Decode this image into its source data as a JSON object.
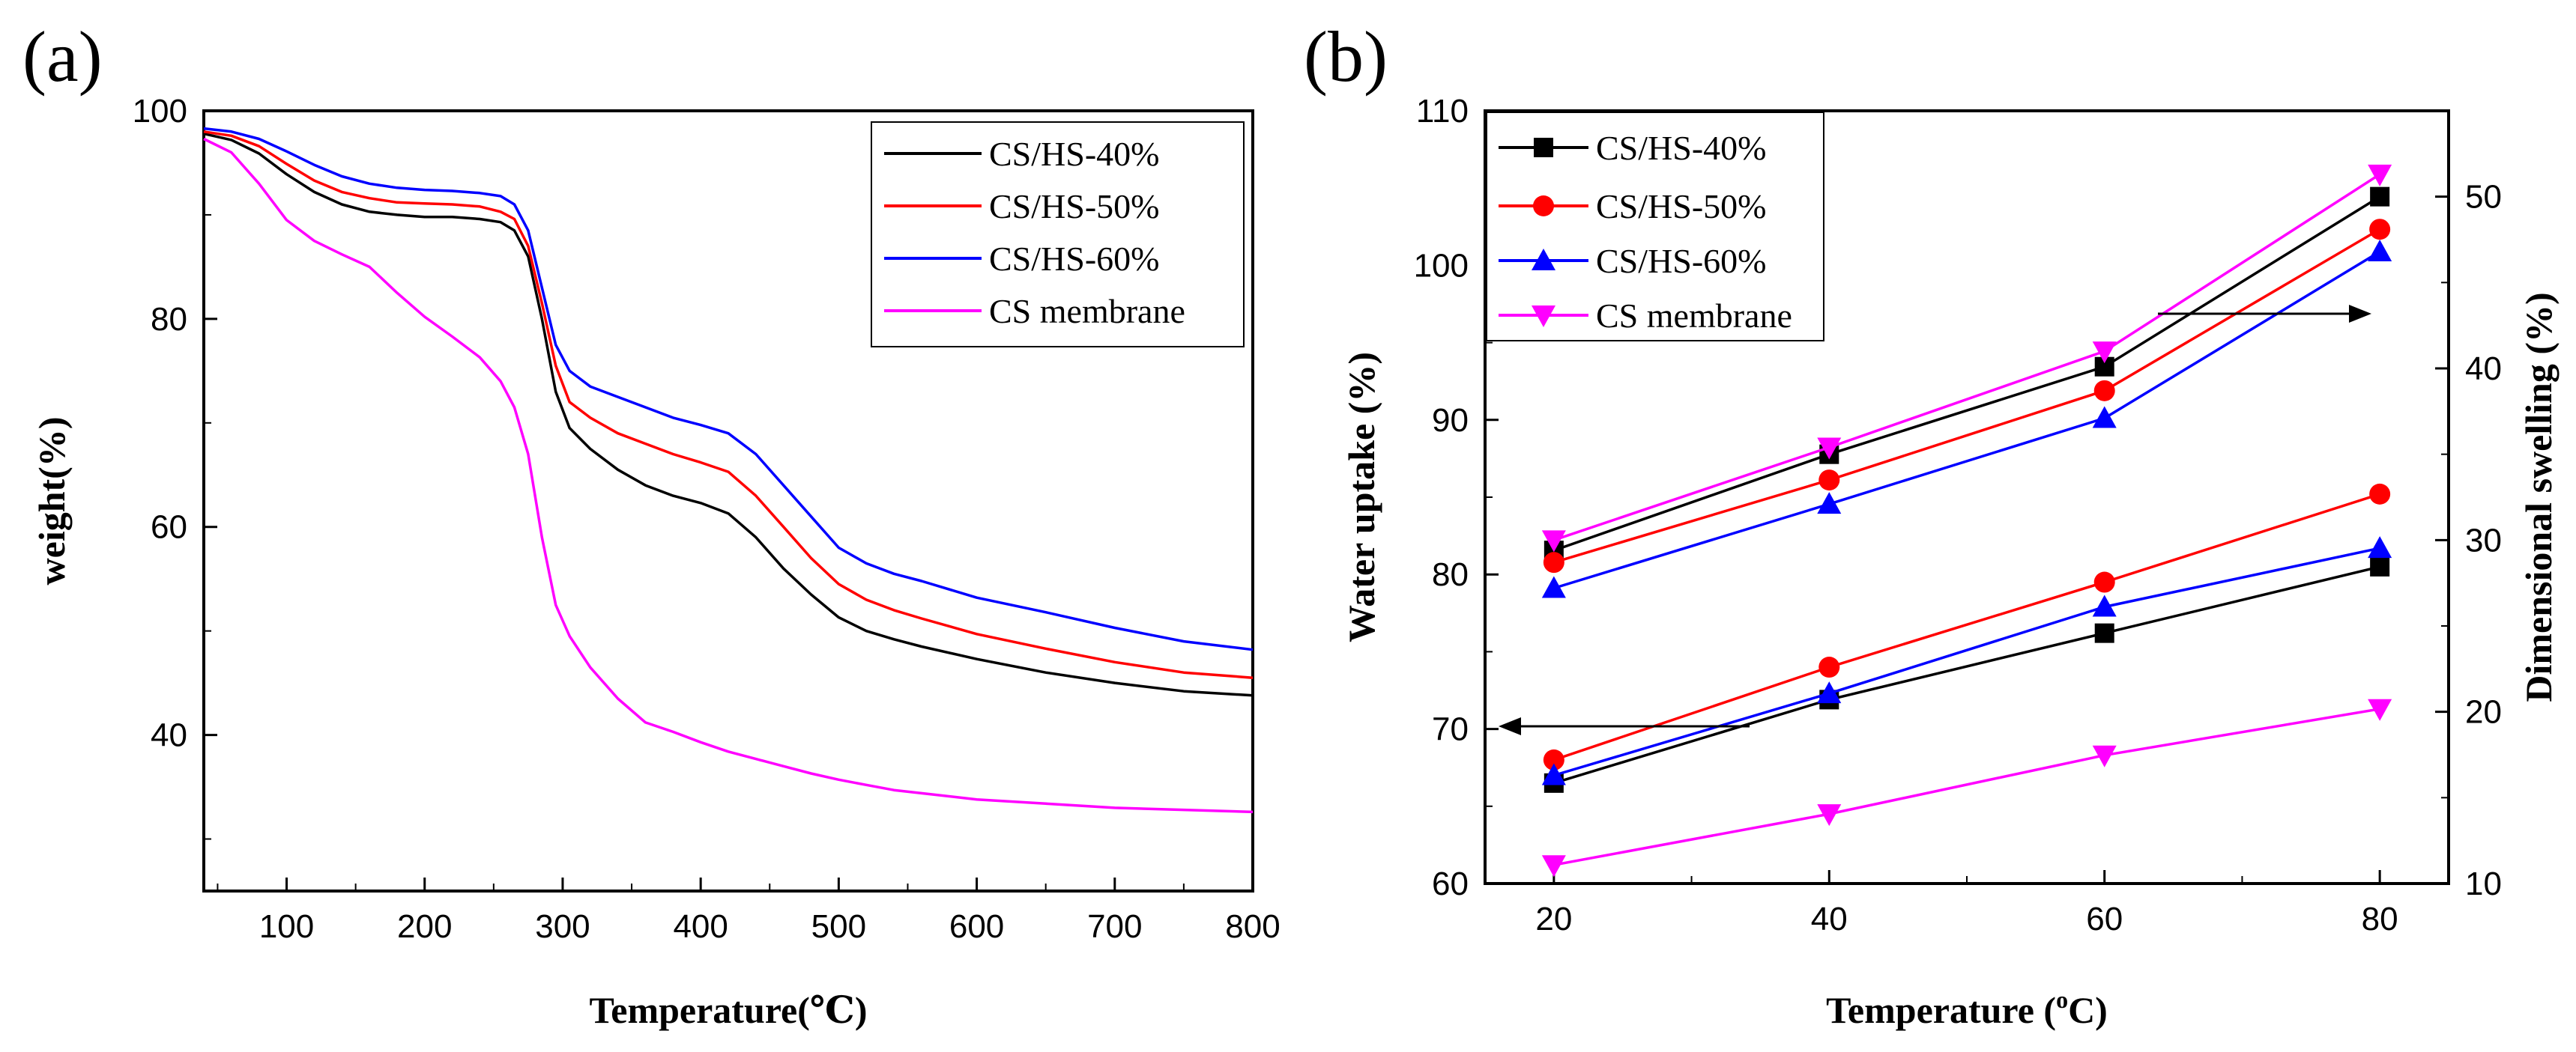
{
  "colors": {
    "CS/HS-40%": "#000000",
    "CS/HS-50%": "#ff0000",
    "CS/HS-60%": "#0000ff",
    "CS membrane": "#ff00ff"
  },
  "chart_data": [
    {
      "panel": "(a)",
      "type": "line",
      "title": "",
      "xlabel": "Temperature(℃)",
      "ylabel": "weight(%)",
      "xlim": [
        40,
        800
      ],
      "ylim": [
        25,
        100
      ],
      "xticks": [
        100,
        200,
        300,
        400,
        500,
        600,
        700,
        800
      ],
      "yticks": [
        40,
        60,
        80,
        100
      ],
      "legend_position": "top-right",
      "series": [
        {
          "name": "CS/HS-40%",
          "x": [
            40,
            60,
            80,
            100,
            120,
            140,
            160,
            180,
            200,
            220,
            240,
            255,
            265,
            275,
            285,
            295,
            305,
            320,
            340,
            360,
            380,
            400,
            420,
            440,
            460,
            480,
            500,
            520,
            540,
            560,
            600,
            650,
            700,
            750,
            800
          ],
          "y": [
            97.8,
            97.2,
            95.9,
            93.9,
            92.2,
            91.0,
            90.3,
            90.0,
            89.8,
            89.8,
            89.6,
            89.3,
            88.5,
            86,
            80,
            73,
            69.5,
            67.5,
            65.5,
            64.0,
            63.0,
            62.3,
            61.3,
            59,
            56,
            53.5,
            51.3,
            50.0,
            49.2,
            48.5,
            47.3,
            46.0,
            45.0,
            44.2,
            43.8
          ]
        },
        {
          "name": "CS/HS-50%",
          "x": [
            40,
            60,
            80,
            100,
            120,
            140,
            160,
            180,
            200,
            220,
            240,
            255,
            265,
            275,
            285,
            295,
            305,
            320,
            340,
            360,
            380,
            400,
            420,
            440,
            460,
            480,
            500,
            520,
            540,
            560,
            600,
            650,
            700,
            750,
            800
          ],
          "y": [
            98.0,
            97.6,
            96.6,
            94.9,
            93.3,
            92.2,
            91.6,
            91.2,
            91.1,
            91.0,
            90.8,
            90.3,
            89.6,
            87,
            81.5,
            75.5,
            72,
            70.5,
            69,
            68,
            67,
            66.2,
            65.3,
            63,
            60,
            57,
            54.5,
            53,
            52,
            51.2,
            49.7,
            48.3,
            47,
            46,
            45.5
          ]
        },
        {
          "name": "CS/HS-60%",
          "x": [
            40,
            60,
            80,
            100,
            120,
            140,
            160,
            180,
            200,
            220,
            240,
            255,
            265,
            275,
            285,
            295,
            305,
            320,
            340,
            360,
            380,
            400,
            420,
            440,
            460,
            480,
            500,
            520,
            540,
            560,
            600,
            650,
            700,
            750,
            800
          ],
          "y": [
            98.3,
            98.0,
            97.3,
            96.1,
            94.8,
            93.7,
            93.0,
            92.6,
            92.4,
            92.3,
            92.1,
            91.8,
            91.0,
            88.5,
            83,
            77.5,
            75,
            73.5,
            72.5,
            71.5,
            70.5,
            69.8,
            69,
            67,
            64,
            61,
            58,
            56.5,
            55.5,
            54.8,
            53.2,
            51.8,
            50.3,
            49,
            48.2
          ]
        },
        {
          "name": "CS membrane",
          "x": [
            40,
            60,
            80,
            100,
            120,
            140,
            160,
            180,
            200,
            220,
            240,
            255,
            265,
            275,
            285,
            295,
            305,
            320,
            340,
            360,
            380,
            400,
            420,
            440,
            460,
            480,
            500,
            520,
            540,
            560,
            600,
            650,
            700,
            750,
            800
          ],
          "y": [
            97.3,
            96.0,
            93,
            89.5,
            87.5,
            86.2,
            85,
            82.5,
            80.2,
            78.3,
            76.3,
            74,
            71.5,
            67,
            59,
            52.5,
            49.5,
            46.5,
            43.5,
            41.2,
            40.3,
            39.3,
            38.4,
            37.7,
            37,
            36.3,
            35.7,
            35.2,
            34.7,
            34.4,
            33.8,
            33.4,
            33.0,
            32.8,
            32.6
          ]
        }
      ]
    },
    {
      "panel": "(b)",
      "type": "line",
      "title": "",
      "xlabel": "Temperature (°C)",
      "xlabel_main": "Temperature (",
      "xlabel_sup": "o",
      "xlabel_end": "C)",
      "ylabel": "Water uptake (%)",
      "y2label": "Dimensional swelling (%)",
      "x": [
        20,
        40,
        60,
        80
      ],
      "xlim": [
        15,
        85
      ],
      "ylim": [
        60,
        110
      ],
      "y2lim": [
        10,
        55
      ],
      "xticks": [
        20,
        40,
        60,
        80
      ],
      "yticks": [
        60,
        70,
        80,
        90,
        100,
        110
      ],
      "y2ticks": [
        10,
        20,
        30,
        40,
        50
      ],
      "legend_position": "top-left",
      "annotations": [
        "left arrow points to Water uptake axis",
        "right arrow points to Dimensional swelling axis"
      ],
      "series": [
        {
          "name": "CS/HS-40%",
          "marker": "square",
          "water_uptake": [
            66.5,
            71.9,
            76.2,
            80.5
          ],
          "dimensional_swelling": [
            29.4,
            35.0,
            40.1,
            50.0
          ]
        },
        {
          "name": "CS/HS-50%",
          "marker": "circle",
          "water_uptake": [
            68.0,
            74.0,
            79.5,
            85.2
          ],
          "dimensional_swelling": [
            28.7,
            33.5,
            38.7,
            48.1
          ]
        },
        {
          "name": "CS/HS-60%",
          "marker": "triangle-up",
          "water_uptake": [
            67.0,
            72.3,
            77.9,
            81.7
          ],
          "dimensional_swelling": [
            27.2,
            32.1,
            37.1,
            46.8
          ]
        },
        {
          "name": "CS membrane",
          "marker": "triangle-down",
          "water_uptake": [
            61.2,
            64.5,
            68.3,
            71.3
          ],
          "dimensional_swelling": [
            30.0,
            35.4,
            41.0,
            51.3
          ]
        }
      ]
    }
  ]
}
